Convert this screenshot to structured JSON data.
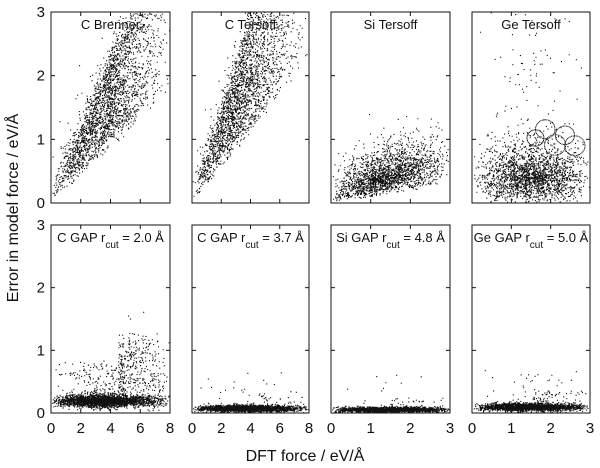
{
  "figure": {
    "xlabel": "DFT force / eV/Å",
    "ylabel": "Error in model force / eV/Å"
  },
  "chart_data": [
    {
      "type": "scatter",
      "label": "C Brenner",
      "row": 0,
      "col": 0,
      "xlim": [
        0,
        8
      ],
      "ylim": [
        0,
        3
      ],
      "xticks": [
        0,
        2,
        4,
        6,
        8
      ],
      "yticks": [
        0,
        1,
        2,
        3
      ],
      "show_xticks": false,
      "show_yticks": true,
      "points": {
        "n": 2600,
        "seed": 11,
        "model": "ramp",
        "x_mode": 4.0,
        "x_max": 8,
        "slope": 0.36,
        "spread": 0.22,
        "jitter": 0.9
      }
    },
    {
      "type": "scatter",
      "label": "C Tersoff",
      "row": 0,
      "col": 1,
      "xlim": [
        0,
        8
      ],
      "ylim": [
        0,
        3
      ],
      "xticks": [
        0,
        2,
        4,
        6,
        8
      ],
      "yticks": [
        0,
        1,
        2,
        3
      ],
      "show_xticks": false,
      "show_yticks": false,
      "points": {
        "n": 2600,
        "seed": 23,
        "model": "ramp",
        "x_mode": 3.2,
        "x_max": 8,
        "slope": 0.46,
        "spread": 0.2,
        "jitter": 0.8
      }
    },
    {
      "type": "scatter",
      "label": "Si Tersoff",
      "row": 0,
      "col": 2,
      "xlim": [
        0,
        3
      ],
      "ylim": [
        0,
        3
      ],
      "xticks": [
        0,
        1,
        2,
        3
      ],
      "yticks": [
        0,
        1,
        2,
        3
      ],
      "show_xticks": false,
      "show_yticks": false,
      "points": {
        "n": 2000,
        "seed": 37,
        "model": "ramp",
        "x_mode": 1.3,
        "x_max": 3,
        "slope": 0.16,
        "spread": 0.3,
        "jitter": 0.15
      }
    },
    {
      "type": "scatter",
      "label": "Ge Tersoff",
      "row": 0,
      "col": 3,
      "xlim": [
        0,
        3
      ],
      "ylim": [
        0,
        3
      ],
      "xticks": [
        0,
        1,
        2,
        3
      ],
      "yticks": [
        0,
        1,
        2,
        3
      ],
      "show_xticks": false,
      "show_yticks": false,
      "points": {
        "n": 2200,
        "seed": 53,
        "model": "blob",
        "x_mode": 1.5,
        "x_max": 3,
        "center": 0.4,
        "spread": 0.32,
        "tail": 0.06
      }
    },
    {
      "type": "scatter",
      "label": "C GAP r",
      "sub": "cut",
      "value": " = 2.0 Å",
      "row": 1,
      "col": 0,
      "xlim": [
        0,
        8
      ],
      "ylim": [
        0,
        3
      ],
      "xticks": [
        0,
        2,
        4,
        6,
        8
      ],
      "yticks": [
        0,
        1,
        2,
        3
      ],
      "show_xticks": true,
      "show_yticks": true,
      "points": {
        "n": 3200,
        "seed": 71,
        "model": "band",
        "x_mode": 3.5,
        "x_max": 8,
        "level": 0.2,
        "spread": 0.1,
        "tail": 0.08,
        "tail_from": 4.5,
        "tail_height": 1.0
      }
    },
    {
      "type": "scatter",
      "label": "C GAP r",
      "sub": "cut",
      "value": " = 3.7 Å",
      "row": 1,
      "col": 1,
      "xlim": [
        0,
        8
      ],
      "ylim": [
        0,
        3
      ],
      "xticks": [
        0,
        2,
        4,
        6,
        8
      ],
      "yticks": [
        0,
        1,
        2,
        3
      ],
      "show_xticks": true,
      "show_yticks": false,
      "points": {
        "n": 2400,
        "seed": 83,
        "model": "band",
        "x_mode": 3.5,
        "x_max": 8,
        "level": 0.08,
        "spread": 0.05,
        "tail": 0.01,
        "tail_from": 4.5,
        "tail_height": 0.25
      }
    },
    {
      "type": "scatter",
      "label": "Si GAP r",
      "sub": "cut",
      "value": " = 4.8 Å",
      "row": 1,
      "col": 2,
      "xlim": [
        0,
        3
      ],
      "ylim": [
        0,
        3
      ],
      "xticks": [
        0,
        1,
        2,
        3
      ],
      "yticks": [
        0,
        1,
        2,
        3
      ],
      "show_xticks": true,
      "show_yticks": false,
      "points": {
        "n": 2400,
        "seed": 97,
        "model": "band",
        "x_mode": 1.3,
        "x_max": 3,
        "level": 0.06,
        "spread": 0.04,
        "tail": 0.01,
        "tail_from": 1.5,
        "tail_height": 0.2
      }
    },
    {
      "type": "scatter",
      "label": "Ge GAP r",
      "sub": "cut",
      "value": " = 5.0 Å",
      "row": 1,
      "col": 3,
      "xlim": [
        0,
        3
      ],
      "ylim": [
        0,
        3
      ],
      "xticks": [
        0,
        1,
        2,
        3
      ],
      "yticks": [
        0,
        1,
        2,
        3
      ],
      "show_xticks": true,
      "show_yticks": false,
      "points": {
        "n": 2400,
        "seed": 109,
        "model": "band",
        "x_mode": 1.4,
        "x_max": 3,
        "level": 0.1,
        "spread": 0.06,
        "tail": 0.015,
        "tail_from": 1.5,
        "tail_height": 0.25
      }
    }
  ]
}
